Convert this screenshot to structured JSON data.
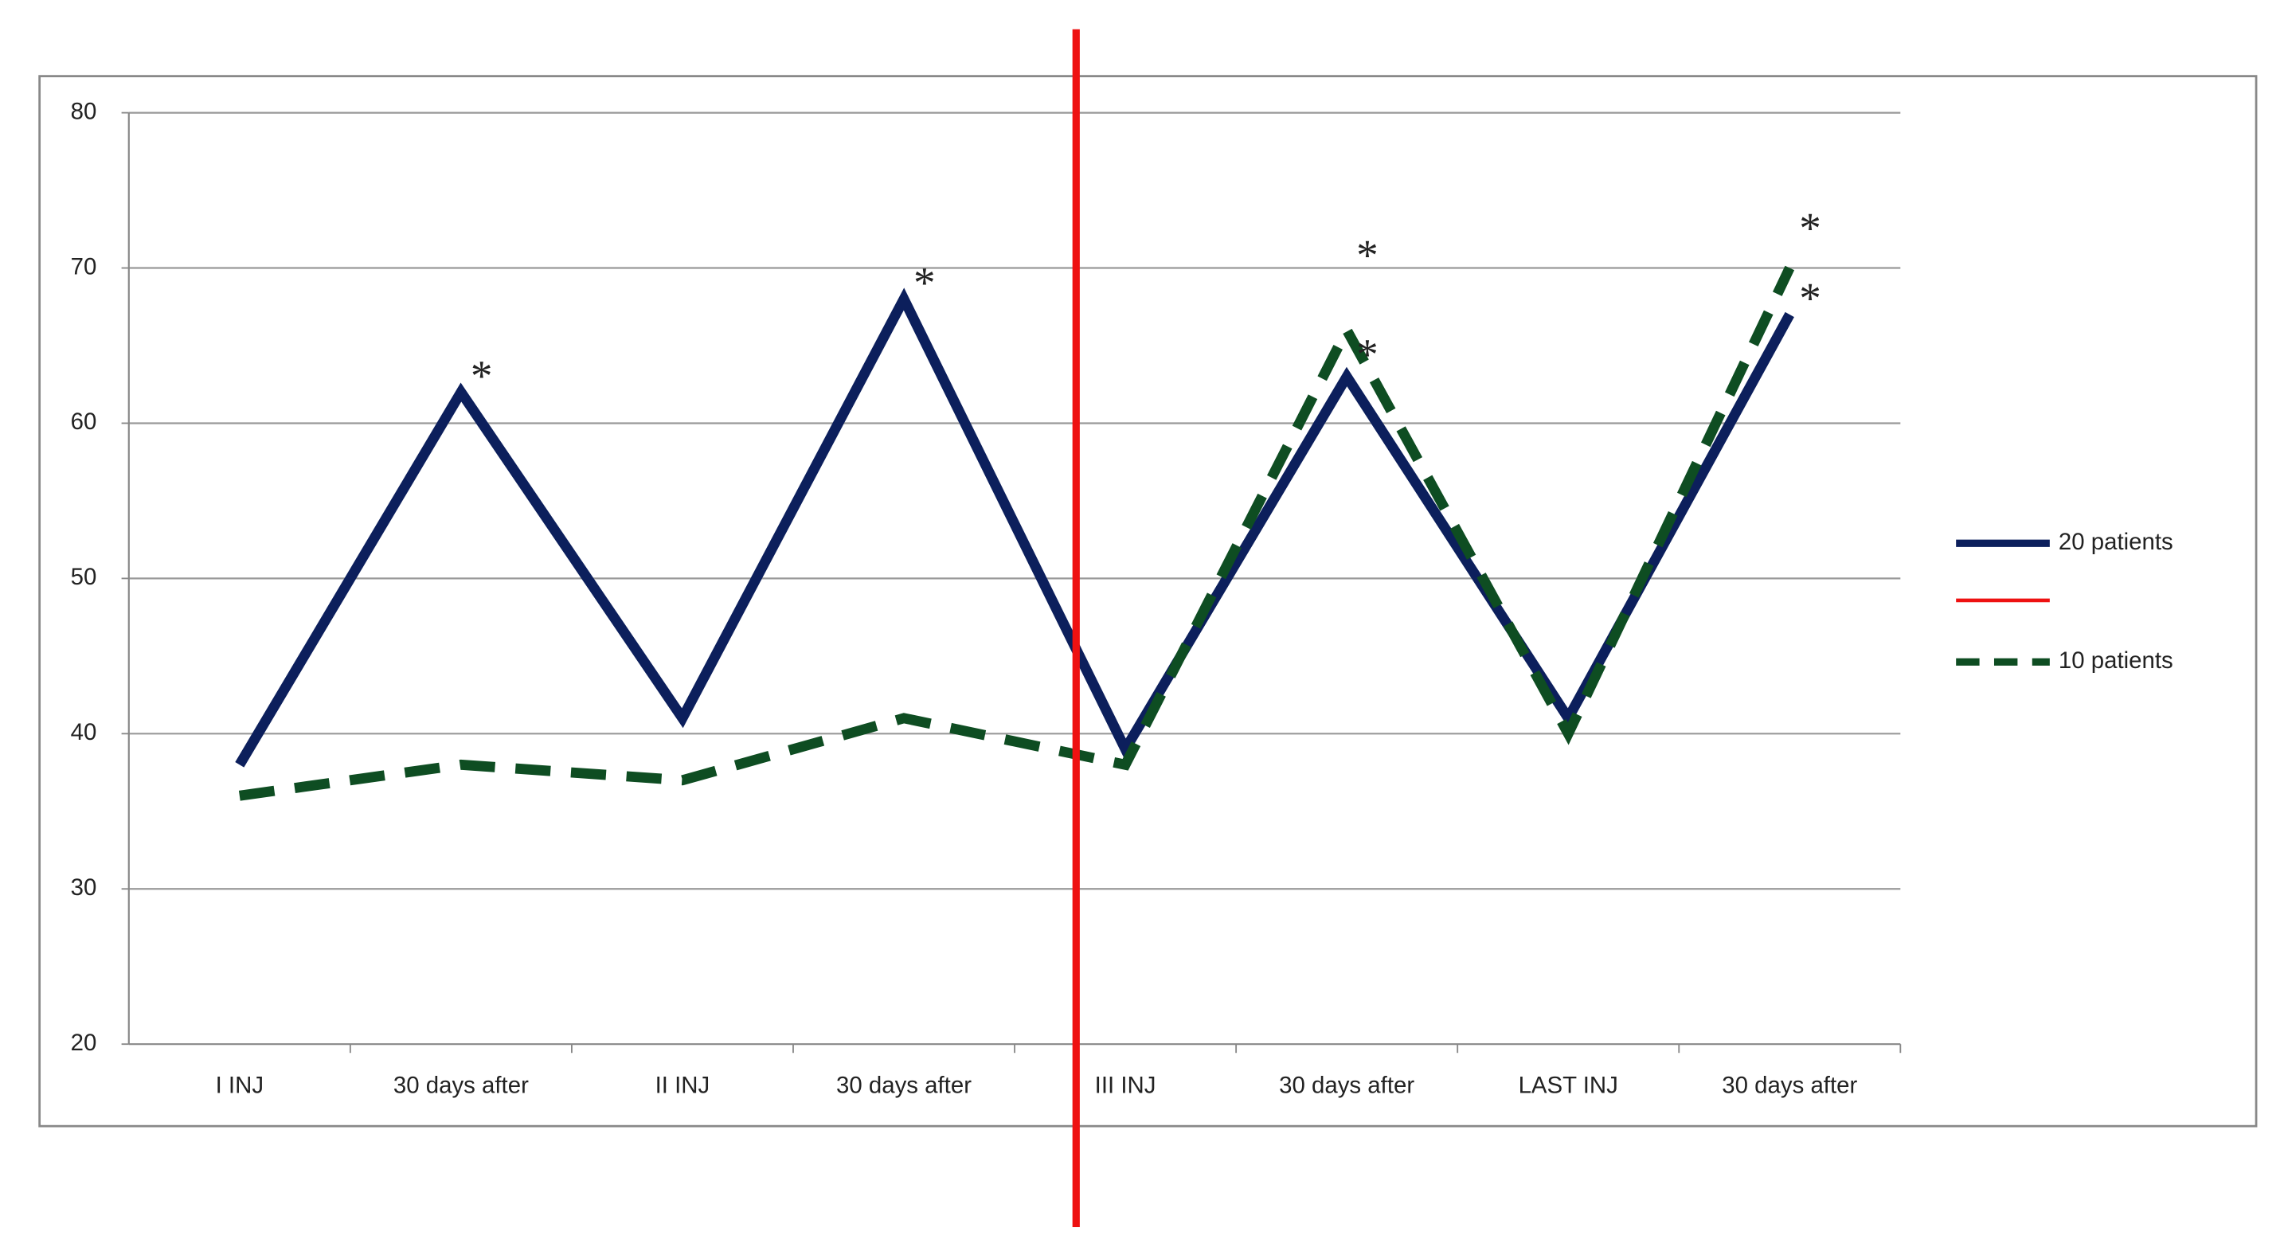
{
  "chart_data": {
    "type": "line",
    "categories": [
      "I INJ",
      "30 days after",
      "II INJ",
      "30 days after",
      "III INJ",
      "30 days after",
      "LAST INJ",
      "30 days after"
    ],
    "series": [
      {
        "name": "20 patients",
        "color": "#0c1f5c",
        "dash": false,
        "values": [
          38,
          62,
          41,
          68,
          39,
          63,
          41,
          67
        ]
      },
      {
        "name": "10 patients",
        "color": "#0e4d22",
        "dash": true,
        "values": [
          36,
          38,
          37,
          41,
          38,
          66,
          40,
          70
        ]
      }
    ],
    "divider_color": "#ee1111",
    "annotations": [
      {
        "text": "*",
        "series": 0,
        "index": 1
      },
      {
        "text": "*",
        "series": 0,
        "index": 3
      },
      {
        "text": "*",
        "series": 0,
        "index": 5
      },
      {
        "text": "*",
        "series": 1,
        "index": 5
      },
      {
        "text": "*",
        "series": 0,
        "index": 7
      },
      {
        "text": "*",
        "series": 1,
        "index": 7
      }
    ],
    "ylim": [
      20,
      80
    ],
    "yticks": [
      20,
      30,
      40,
      50,
      60,
      70,
      80
    ],
    "grid": true,
    "legend": "right"
  }
}
